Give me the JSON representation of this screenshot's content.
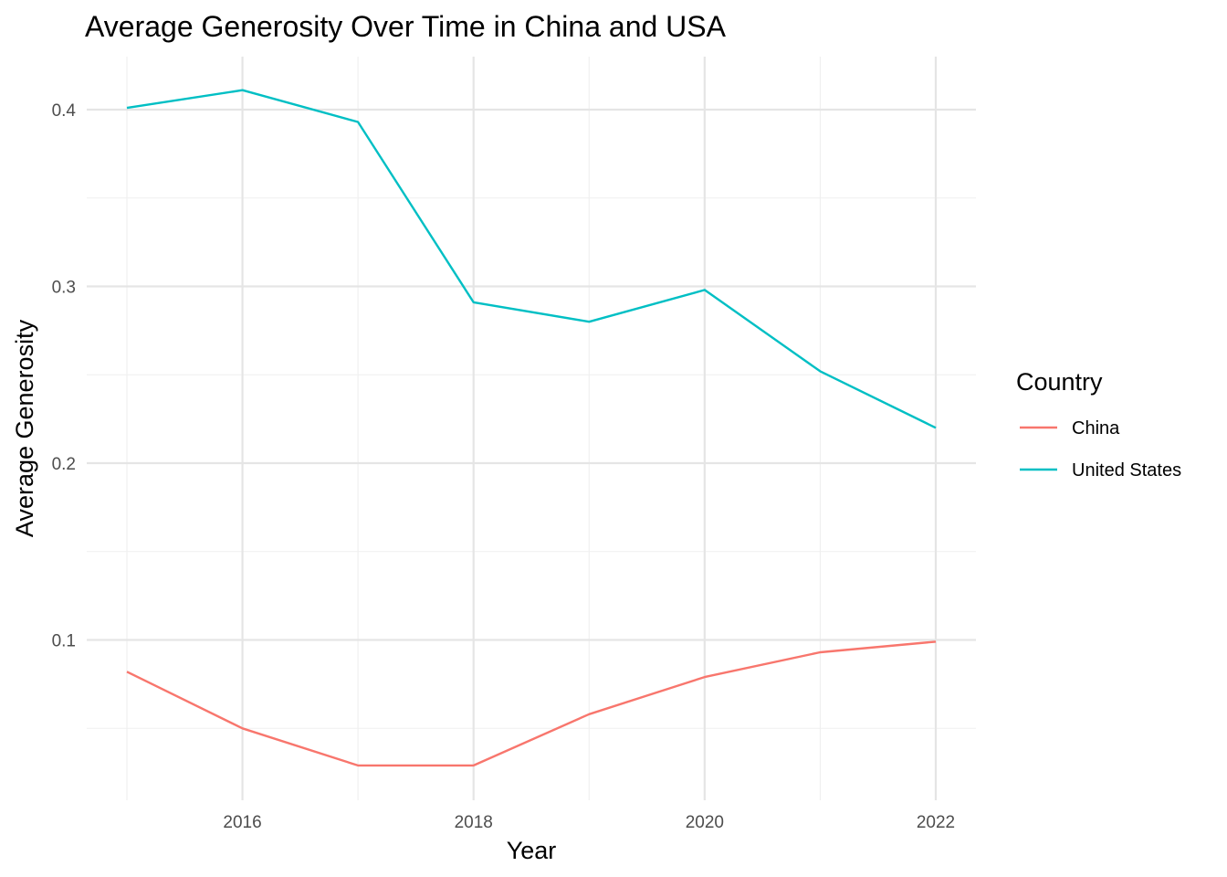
{
  "chart_data": {
    "type": "line",
    "title": "Average Generosity Over Time in China and USA",
    "xlabel": "Year",
    "ylabel": "Average Generosity",
    "x": [
      2015,
      2016,
      2017,
      2018,
      2019,
      2020,
      2021,
      2022
    ],
    "xlim": [
      2015,
      2022
    ],
    "ylim": [
      0.02,
      0.41
    ],
    "x_ticks": [
      2016,
      2018,
      2020,
      2022
    ],
    "x_tick_labels": [
      "2016",
      "2018",
      "2020",
      "2022"
    ],
    "y_ticks": [
      0.1,
      0.2,
      0.3,
      0.4
    ],
    "y_tick_labels": [
      "0.1",
      "0.2",
      "0.3",
      "0.4"
    ],
    "grid": true,
    "legend": {
      "title": "Country",
      "position": "right"
    },
    "series": [
      {
        "name": "China",
        "color": "#F8766D",
        "values": [
          0.082,
          0.05,
          0.029,
          0.029,
          0.058,
          0.079,
          0.093,
          0.099
        ]
      },
      {
        "name": "United States",
        "color": "#00BFC4",
        "values": [
          0.401,
          0.411,
          0.393,
          0.291,
          0.28,
          0.298,
          0.252,
          0.22
        ]
      }
    ]
  }
}
